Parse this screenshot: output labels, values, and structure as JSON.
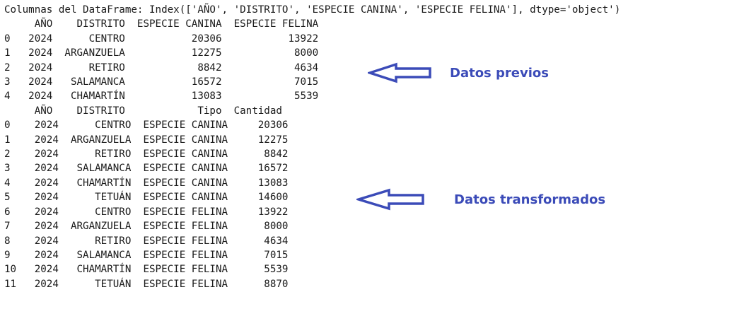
{
  "console": {
    "columns_line": "Columnas del DataFrame: Index(['AÑO', 'DISTRITO', 'ESPECIE CANINA', 'ESPECIE FELINA'], dtype='object')",
    "before": {
      "header": "     AÑO    DISTRITO  ESPECIE CANINA  ESPECIE FELINA",
      "rows": [
        "0   2024      CENTRO           20306           13922",
        "1   2024  ARGANZUELA           12275            8000",
        "2   2024      RETIRO            8842            4634",
        "3   2024   SALAMANCA           16572            7015",
        "4   2024   CHAMARTÍN           13083            5539"
      ]
    },
    "after": {
      "header": "     AÑO    DISTRITO            Tipo  Cantidad",
      "rows": [
        "0    2024      CENTRO  ESPECIE CANINA     20306",
        "1    2024  ARGANZUELA  ESPECIE CANINA     12275",
        "2    2024      RETIRO  ESPECIE CANINA      8842",
        "3    2024   SALAMANCA  ESPECIE CANINA     16572",
        "4    2024   CHAMARTÍN  ESPECIE CANINA     13083",
        "5    2024      TETUÁN  ESPECIE CANINA     14600",
        "6    2024      CENTRO  ESPECIE FELINA     13922",
        "7    2024  ARGANZUELA  ESPECIE FELINA      8000",
        "8    2024      RETIRO  ESPECIE FELINA      4634",
        "9    2024   SALAMANCA  ESPECIE FELINA      7015",
        "10   2024   CHAMARTÍN  ESPECIE FELINA      5539",
        "11   2024      TETUÁN  ESPECIE FELINA      8870"
      ]
    }
  },
  "annotations": {
    "previous_label": "Datos previos",
    "transformed_label": "Datos transformados",
    "color": "#3b4bb8"
  },
  "icons": {
    "arrow": "arrow-left-outline-icon"
  }
}
